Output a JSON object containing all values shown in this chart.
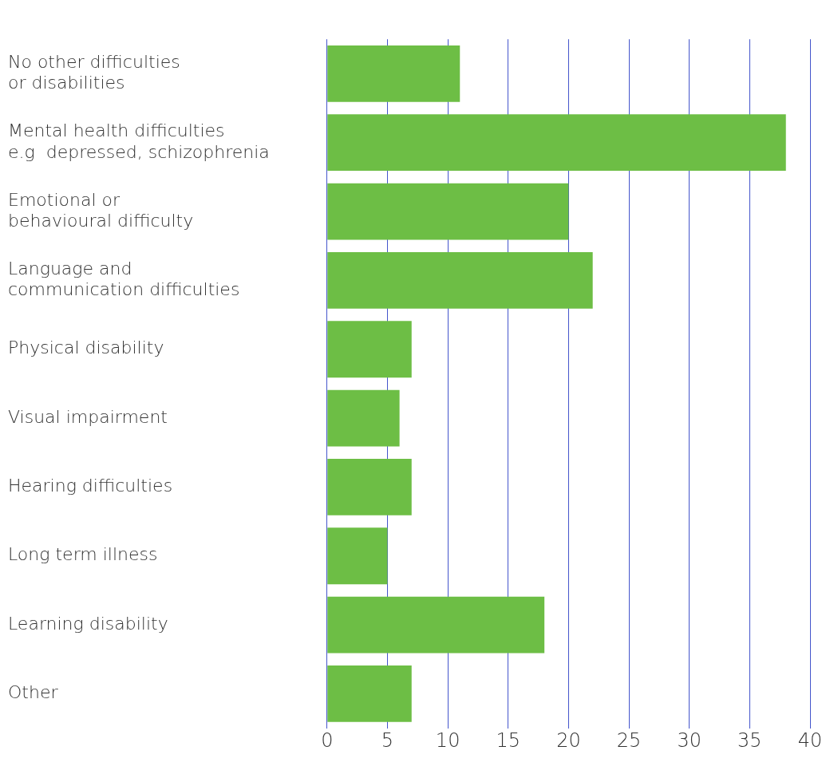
{
  "chart_data": {
    "type": "bar",
    "orientation": "horizontal",
    "categories": [
      "No other difficulties\nor disabilities",
      "Mental health difficulties\ne.g  depressed, schizophrenia",
      "Emotional or\nbehavioural difficulty",
      "Language and\ncommunication difficulties",
      "Physical disability",
      "Visual impairment",
      "Hearing difficulties",
      "Long term illness",
      "Learning disability",
      "Other"
    ],
    "values": [
      11,
      38,
      20,
      22,
      7,
      6,
      7,
      5,
      18,
      7
    ],
    "color": "#6dbe45",
    "xlim": [
      0,
      40
    ],
    "xticks": [
      0,
      5,
      10,
      15,
      20,
      25,
      30,
      35,
      40
    ],
    "grid": "x"
  }
}
